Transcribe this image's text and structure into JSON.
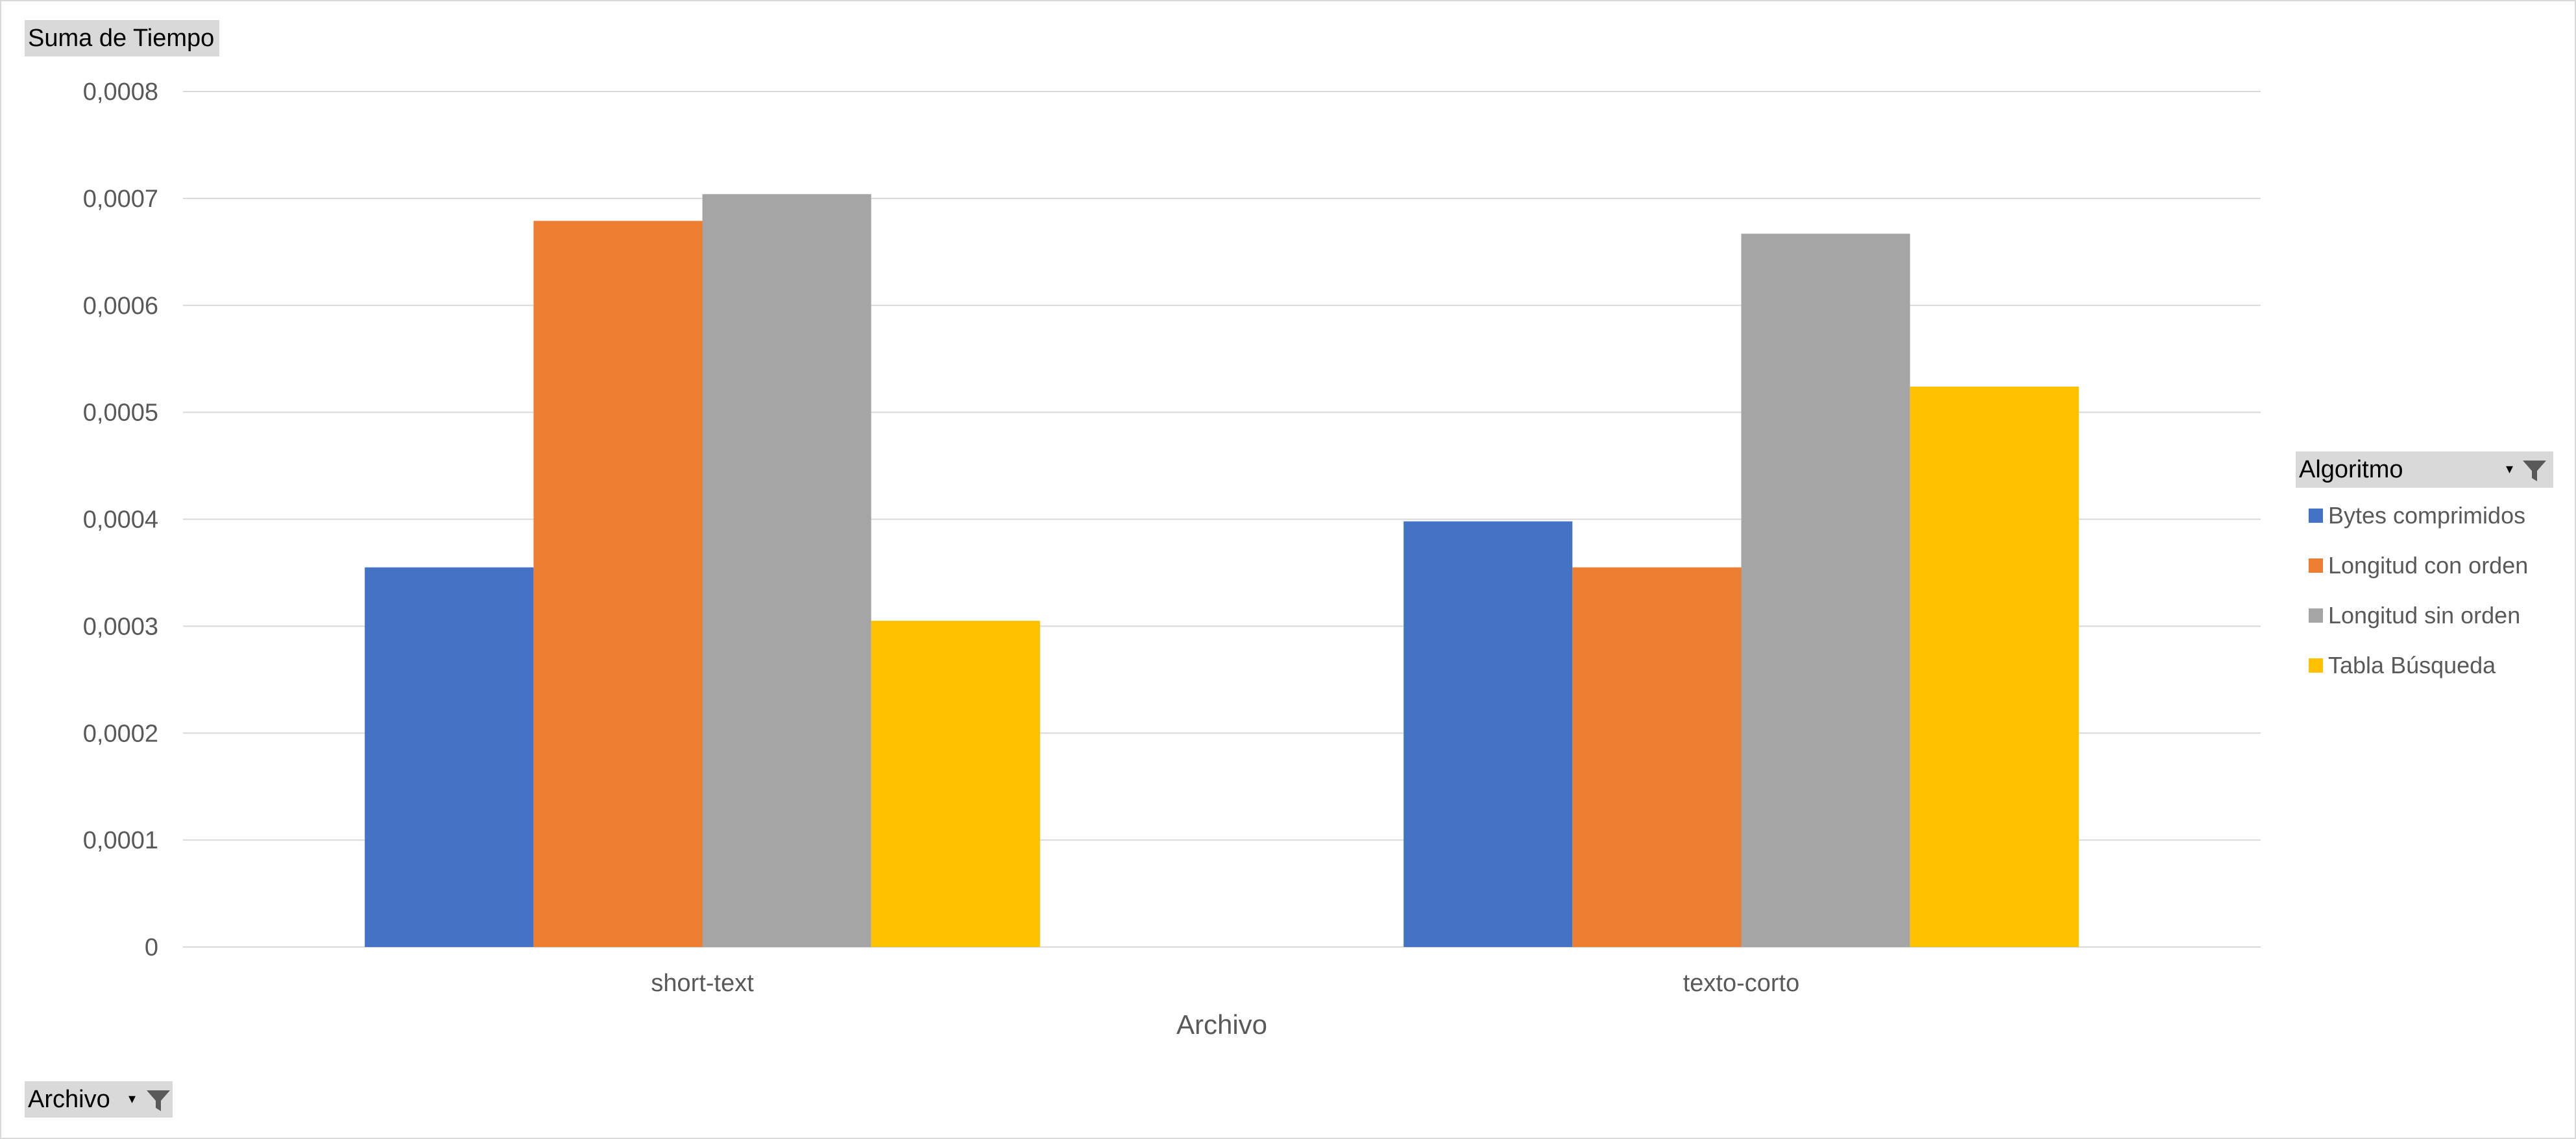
{
  "value_field": {
    "label": "Suma de Tiempo"
  },
  "axis_field": {
    "label": "Archivo",
    "dropdown": "▾"
  },
  "legend_field": {
    "label": "Algoritmo",
    "dropdown": "▾"
  },
  "chart_data": {
    "type": "bar",
    "xlabel": "Archivo",
    "ylabel": "",
    "ylim": [
      0,
      0.0008
    ],
    "yticks": [
      "0",
      "0,0001",
      "0,0002",
      "0,0003",
      "0,0004",
      "0,0005",
      "0,0006",
      "0,0007",
      "0,0008"
    ],
    "ytick_values": [
      0,
      0.0001,
      0.0002,
      0.0003,
      0.0004,
      0.0005,
      0.0006,
      0.0007,
      0.0008
    ],
    "grid": true,
    "legend_position": "right",
    "categories": [
      "short-text",
      "texto-corto"
    ],
    "series": [
      {
        "name": "Bytes comprimidos",
        "color": "#4472c4",
        "values": [
          0.000355,
          0.000398
        ]
      },
      {
        "name": "Longitud con orden",
        "color": "#ed7d31",
        "values": [
          0.000679,
          0.000355
        ]
      },
      {
        "name": "Longitud sin orden",
        "color": "#a5a5a5",
        "values": [
          0.000704,
          0.000667
        ]
      },
      {
        "name": "Tabla Búsqueda",
        "color": "#ffc000",
        "values": [
          0.000305,
          0.000524
        ]
      }
    ]
  }
}
